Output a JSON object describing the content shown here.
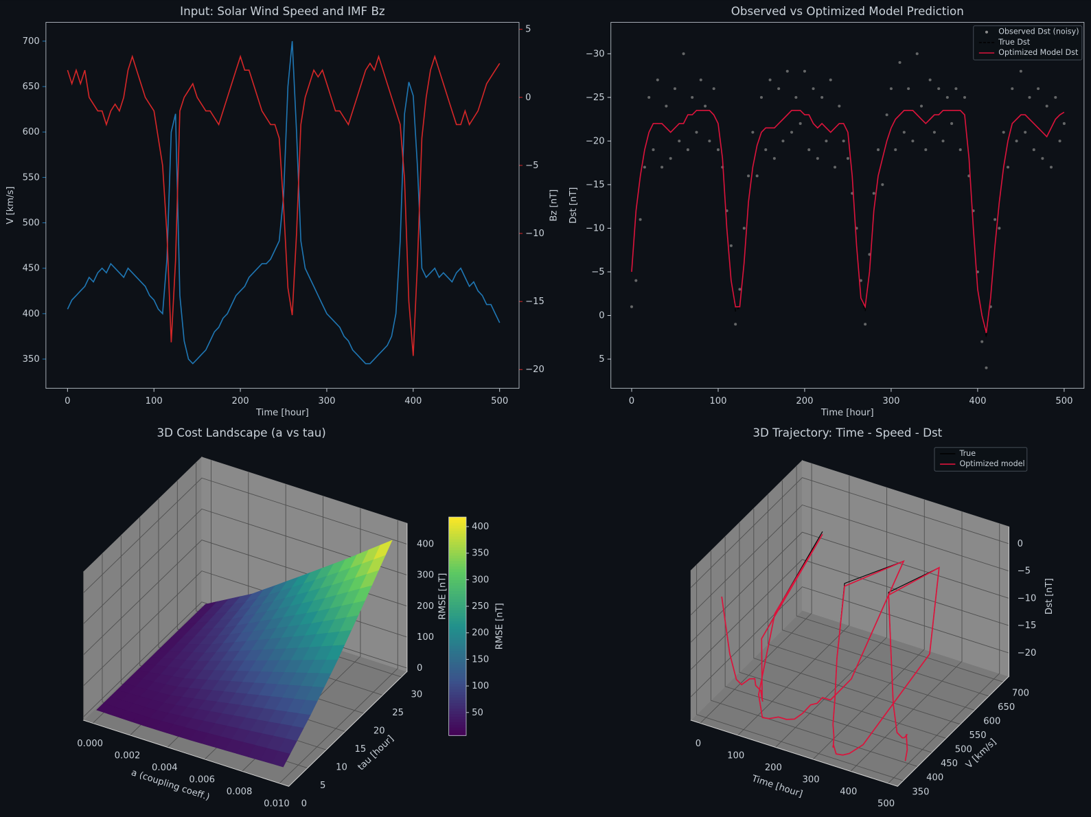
{
  "chart_data": [
    {
      "type": "dual_line",
      "title": "Input: Solar Wind Speed and IMF Bz",
      "xlabel": "Time [hour]",
      "ylabel": "V [km/s]",
      "y2label": "Bz [nT]",
      "x": [
        0,
        5,
        10,
        15,
        20,
        25,
        30,
        35,
        40,
        45,
        50,
        55,
        60,
        65,
        70,
        75,
        80,
        85,
        90,
        95,
        100,
        105,
        110,
        115,
        120,
        125,
        130,
        135,
        140,
        145,
        150,
        155,
        160,
        165,
        170,
        175,
        180,
        185,
        190,
        195,
        200,
        205,
        210,
        215,
        220,
        225,
        230,
        235,
        240,
        245,
        250,
        255,
        260,
        265,
        270,
        275,
        280,
        285,
        290,
        295,
        300,
        305,
        310,
        315,
        320,
        325,
        330,
        335,
        340,
        345,
        350,
        355,
        360,
        365,
        370,
        375,
        380,
        385,
        390,
        395,
        400,
        405,
        410,
        415,
        420,
        425,
        430,
        435,
        440,
        445,
        450,
        455,
        460,
        465,
        470,
        475,
        480,
        485,
        490,
        495,
        500
      ],
      "xlim": [
        -25,
        522.5
      ],
      "xticks": [
        0,
        100,
        200,
        300,
        400,
        500
      ],
      "ylim": [
        317.8,
        720.7
      ],
      "yticks": [
        350,
        400,
        450,
        500,
        550,
        600,
        650,
        700
      ],
      "y2lim": [
        -21.38,
        5.51
      ],
      "y2ticks": [
        5,
        0,
        {
          "value": -5,
          "label": "−5"
        },
        {
          "value": -10,
          "label": "−10"
        },
        {
          "value": -15,
          "label": "−15"
        },
        {
          "value": -20,
          "label": "−20"
        }
      ],
      "series": [
        {
          "color": "#1f77b4",
          "axis": "y",
          "values": [
            405,
            415,
            420,
            425,
            430,
            440,
            435,
            445,
            450,
            445,
            455,
            450,
            445,
            440,
            450,
            445,
            440,
            435,
            430,
            420,
            415,
            405,
            400,
            460,
            600,
            620,
            420,
            370,
            350,
            345,
            350,
            355,
            360,
            370,
            380,
            385,
            395,
            400,
            410,
            420,
            425,
            430,
            440,
            445,
            450,
            455,
            455,
            460,
            470,
            480,
            530,
            650,
            700,
            600,
            480,
            450,
            440,
            430,
            420,
            410,
            400,
            395,
            390,
            385,
            375,
            370,
            360,
            355,
            350,
            345,
            345,
            350,
            355,
            360,
            365,
            375,
            400,
            480,
            620,
            655,
            640,
            560,
            450,
            440,
            445,
            450,
            440,
            445,
            440,
            435,
            445,
            450,
            440,
            430,
            435,
            425,
            420,
            410,
            410,
            400,
            390
          ]
        },
        {
          "color": "#d62728",
          "axis": "y2",
          "values": [
            2,
            1,
            2,
            1,
            2,
            0,
            -0.5,
            -1,
            -1,
            -2,
            -1,
            -0.5,
            -1,
            0,
            2,
            3,
            2,
            1,
            0,
            -0.5,
            -1,
            -3,
            -5,
            -10,
            -18,
            -12,
            -1,
            0,
            0.5,
            1,
            0,
            -0.5,
            -1,
            -1,
            -1.5,
            -2,
            -1,
            0,
            1,
            2,
            3,
            2,
            2,
            1,
            0,
            -1,
            -1.5,
            -2,
            -2,
            -3,
            -8,
            -14,
            -16,
            -10,
            -2,
            0,
            1,
            2,
            1.5,
            2,
            1,
            0,
            -1,
            -1,
            -1.5,
            -2,
            -1,
            0,
            1,
            2,
            2.5,
            2,
            3,
            2,
            1,
            0,
            -1,
            -2,
            -6,
            -15,
            -19,
            -12,
            -3,
            0,
            2,
            3,
            2,
            1,
            0,
            -1,
            -2,
            -2,
            -1,
            -2,
            -1.5,
            -1,
            0,
            1,
            1.5,
            2,
            2.5
          ]
        }
      ]
    },
    {
      "type": "line_scatter",
      "title": "Observed vs Optimized Model Prediction",
      "xlabel": "Time [hour]",
      "ylabel": "Dst [nT]",
      "x": [
        0,
        5,
        10,
        15,
        20,
        25,
        30,
        35,
        40,
        45,
        50,
        55,
        60,
        65,
        70,
        75,
        80,
        85,
        90,
        95,
        100,
        105,
        110,
        115,
        120,
        125,
        130,
        135,
        140,
        145,
        150,
        155,
        160,
        165,
        170,
        175,
        180,
        185,
        190,
        195,
        200,
        205,
        210,
        215,
        220,
        225,
        230,
        235,
        240,
        245,
        250,
        255,
        260,
        265,
        270,
        275,
        280,
        285,
        290,
        295,
        300,
        305,
        310,
        315,
        320,
        325,
        330,
        335,
        340,
        345,
        350,
        355,
        360,
        365,
        370,
        375,
        380,
        385,
        390,
        395,
        400,
        405,
        410,
        415,
        420,
        425,
        430,
        435,
        440,
        445,
        450,
        455,
        460,
        465,
        470,
        475,
        480,
        485,
        490,
        495,
        500
      ],
      "xlim": [
        -24,
        523
      ],
      "xticks": [
        0,
        100,
        200,
        300,
        400,
        500
      ],
      "ylim": [
        8.35,
        -33.6
      ],
      "yticks": [
        {
          "value": -30,
          "label": "−30"
        },
        {
          "value": -25,
          "label": "−25"
        },
        {
          "value": -20,
          "label": "−20"
        },
        {
          "value": -15,
          "label": "−15"
        },
        {
          "value": -10,
          "label": "−10"
        },
        {
          "value": -5,
          "label": "−5"
        },
        0,
        5
      ],
      "legend": "upper right",
      "series": [
        {
          "name": "Observed Dst (noisy)",
          "color": "#8b8b8b",
          "style": "scatter",
          "values": [
            -1,
            -4,
            -11,
            -17,
            -25,
            -19,
            -27,
            -17,
            -24,
            -18,
            -26,
            -20,
            -30,
            -19,
            -25,
            -21,
            -27,
            -24,
            -20,
            -26,
            -19,
            -17,
            -12,
            -8,
            1,
            -3,
            -10,
            -16,
            -21,
            -16,
            -25,
            -19,
            -27,
            -18,
            -26,
            -20,
            -28,
            -21,
            -25,
            -22,
            -28,
            -19,
            -26,
            -18,
            -25,
            -20,
            -27,
            -17,
            -24,
            -20,
            -18,
            -14,
            -10,
            -4,
            1,
            -7,
            -14,
            -19,
            -15,
            -23,
            -26,
            -19,
            -29,
            -21,
            -26,
            -20,
            -30,
            -24,
            -19,
            -27,
            -21,
            -26,
            -20,
            -25,
            -22,
            -26,
            -19,
            -25,
            -16,
            -12,
            -5,
            3,
            6,
            -1,
            -11,
            -10,
            -21,
            -17,
            -26,
            -20,
            -28,
            -21,
            -25,
            -19,
            -26,
            -18,
            -24,
            -17,
            -25,
            -20,
            -22
          ]
        },
        {
          "name": "True Dst",
          "color": "#000000",
          "style": "dashed",
          "values": [
            -5,
            -12,
            -16,
            -19,
            -21,
            -22,
            -22,
            -22,
            -21.5,
            -21,
            -21.5,
            -22,
            -22,
            -23,
            -23,
            -23.5,
            -23.5,
            -23.5,
            -23.5,
            -23,
            -22,
            -18,
            -10,
            -4,
            -0.5,
            -1,
            -6,
            -13,
            -17,
            -19.5,
            -21,
            -21.5,
            -21.5,
            -21.5,
            -22,
            -22.5,
            -23,
            -23.5,
            -23.5,
            -23.5,
            -23,
            -23,
            -22,
            -21.5,
            -22,
            -21.5,
            -21,
            -21.5,
            -22,
            -22,
            -21,
            -16,
            -8,
            -2,
            -0.5,
            -5,
            -12,
            -16,
            -18,
            -20,
            -21.5,
            -22.5,
            -23,
            -23.5,
            -23.5,
            -23.5,
            -23,
            -22.5,
            -22,
            -22.5,
            -23,
            -23,
            -23.5,
            -23.5,
            -23.5,
            -23.5,
            -23.5,
            -23,
            -18,
            -10,
            -3,
            0,
            2.5,
            -2,
            -8,
            -13,
            -17,
            -20,
            -22,
            -22.5,
            -23,
            -23,
            -22.5,
            -22,
            -21.5,
            -21,
            -20.5,
            -21.5,
            -22.5,
            -23,
            -23.3
          ]
        },
        {
          "name": "Optimized Model Dst",
          "color": "#dc143c",
          "style": "line",
          "values": [
            -5,
            -12,
            -16,
            -19,
            -21,
            -22,
            -22,
            -22,
            -21.5,
            -21,
            -21.5,
            -22,
            -22,
            -23,
            -23,
            -23.5,
            -23.5,
            -23.5,
            -23.5,
            -23,
            -22,
            -18,
            -10,
            -4,
            -1,
            -1,
            -6,
            -13,
            -17,
            -19.5,
            -21,
            -21.5,
            -21.5,
            -21.5,
            -22,
            -22.5,
            -23,
            -23.5,
            -23.5,
            -23.5,
            -23,
            -23,
            -22,
            -21.5,
            -22,
            -21.5,
            -21,
            -21.5,
            -22,
            -22,
            -21,
            -16,
            -8,
            -2,
            -1,
            -5,
            -12,
            -16,
            -18,
            -20,
            -21.5,
            -22.5,
            -23,
            -23.5,
            -23.5,
            -23.5,
            -23,
            -22.5,
            -22,
            -22.5,
            -23,
            -23,
            -23.5,
            -23.5,
            -23.5,
            -23.5,
            -23.5,
            -23,
            -18,
            -10,
            -3,
            0,
            2,
            -2,
            -8,
            -13,
            -17,
            -20,
            -22,
            -22.5,
            -23,
            -23,
            -22.5,
            -22,
            -21.5,
            -21,
            -20.5,
            -21.5,
            -22.5,
            -23,
            -23.3
          ]
        }
      ]
    },
    {
      "type": "surface3d",
      "title": "3D Cost Landscape (a vs tau)",
      "xlabel": "a (coupling coeff.)",
      "ylabel": "tau [hour]",
      "zlabel": "RMSE [nT]",
      "x": [
        0,
        0.0025,
        0.005,
        0.0075,
        0.01
      ],
      "y": [
        1,
        8.25,
        15.5,
        22.75,
        30
      ],
      "z": [
        [
          20,
          18,
          20,
          25,
          30
        ],
        [
          20,
          30,
          58,
          85,
          112
        ],
        [
          20,
          55,
          105,
          155,
          205
        ],
        [
          20,
          78,
          153,
          228,
          310
        ],
        [
          20,
          102,
          205,
          310,
          420
        ]
      ],
      "xlim": [
        -0.0005,
        0.0105
      ],
      "xticks": [
        {
          "value": 0,
          "label": "0.000"
        },
        {
          "value": 0.002,
          "label": "0.002"
        },
        {
          "value": 0.004,
          "label": "0.004"
        },
        {
          "value": 0.006,
          "label": "0.006"
        },
        {
          "value": 0.008,
          "label": "0.008"
        },
        {
          "value": 0.01,
          "label": "0.010"
        }
      ],
      "ylim": [
        0,
        31.5
      ],
      "yticks": [
        0,
        5,
        10,
        15,
        20,
        25,
        30
      ],
      "zlim": [
        -11,
        467
      ],
      "zticks": [
        0,
        100,
        200,
        300,
        400
      ],
      "colormap": "viridis",
      "colorbar": {
        "label": "RMSE [nT]",
        "clim": [
          6.7,
          418
        ],
        "ticks": [
          50,
          100,
          150,
          200,
          250,
          300,
          350,
          400
        ]
      }
    },
    {
      "type": "trajectory3d",
      "title": "3D Trajectory: Time - Speed - Dst",
      "xlabel": "Time [hour]",
      "ylabel": "V [km/s]",
      "zlabel": "Dst [nT]",
      "x": [
        0,
        10,
        20,
        30,
        40,
        50,
        60,
        70,
        80,
        90,
        100,
        110,
        120,
        130,
        140,
        150,
        160,
        170,
        180,
        190,
        200,
        210,
        220,
        230,
        240,
        250,
        260,
        270,
        280,
        290,
        300,
        310,
        320,
        330,
        340,
        350,
        360,
        370,
        380,
        390,
        400,
        410,
        420,
        430,
        440,
        450,
        460,
        470,
        480,
        490,
        500
      ],
      "y": [
        405,
        420,
        430,
        435,
        450,
        455,
        445,
        450,
        440,
        430,
        415,
        400,
        600,
        420,
        350,
        350,
        360,
        380,
        395,
        410,
        425,
        440,
        450,
        455,
        470,
        530,
        700,
        480,
        440,
        420,
        400,
        390,
        375,
        360,
        350,
        345,
        355,
        365,
        400,
        620,
        640,
        450,
        445,
        440,
        440,
        445,
        440,
        435,
        420,
        410,
        390
      ],
      "xlim": [
        -25,
        525
      ],
      "xticks": [
        0,
        100,
        200,
        300,
        400,
        500
      ],
      "ylim": [
        330,
        720
      ],
      "yticks": [
        350,
        400,
        450,
        500,
        550,
        600,
        650,
        700
      ],
      "zlim": [
        -24.3,
        3.1
      ],
      "zticks": [
        0,
        {
          "value": -5,
          "label": "−5"
        },
        {
          "value": -10,
          "label": "−10"
        },
        {
          "value": -15,
          "label": "−15"
        },
        {
          "value": -20,
          "label": "−20"
        }
      ],
      "legend": "upper right",
      "series": [
        {
          "name": "True",
          "color": "#000000",
          "values": [
            -5,
            -16,
            -21,
            -22,
            -21.5,
            -21.5,
            -22,
            -23,
            -23.5,
            -23.5,
            -22,
            -10,
            -0.5,
            -6,
            -17,
            -21,
            -21.5,
            -22,
            -23,
            -23.5,
            -23,
            -22,
            -22,
            -21,
            -22,
            -21,
            -8,
            -0.5,
            -12,
            -18,
            -21.5,
            -23,
            -23.5,
            -23,
            -22,
            -23,
            -23.5,
            -23.5,
            -23.5,
            -18,
            -3,
            2.5,
            -8,
            -17,
            -22,
            -23,
            -22.5,
            -21.5,
            -20.5,
            -22.5,
            -23.3
          ]
        },
        {
          "name": "Optimized model",
          "color": "#dc143c",
          "values": [
            -5,
            -16,
            -21,
            -22,
            -21.5,
            -21.5,
            -22,
            -23,
            -23.5,
            -23.5,
            -22,
            -10,
            -1,
            -6,
            -17,
            -21,
            -21.5,
            -22,
            -23,
            -23.5,
            -23,
            -22,
            -22,
            -21,
            -22,
            -21,
            -8,
            -1,
            -12,
            -18,
            -21.5,
            -23,
            -23.5,
            -23,
            -22,
            -23,
            -23.5,
            -23.5,
            -23.5,
            -18,
            -3,
            2,
            -8,
            -17,
            -22,
            -23,
            -22.5,
            -21.5,
            -20.5,
            -22.5,
            -23.3
          ]
        }
      ]
    }
  ]
}
